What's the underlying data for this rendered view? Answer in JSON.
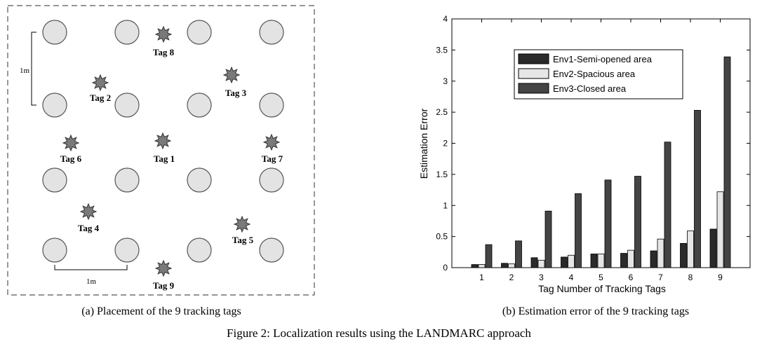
{
  "figure_caption": "Figure 2: Localization results using the LANDMARC approach",
  "left_panel": {
    "caption": "(a) Placement of the 9 tracking tags",
    "scale_label_vertical": "1m",
    "scale_label_horizontal": "1m",
    "tags": [
      {
        "label": "Tag 1"
      },
      {
        "label": "Tag 2"
      },
      {
        "label": "Tag 3"
      },
      {
        "label": "Tag 4"
      },
      {
        "label": "Tag 5"
      },
      {
        "label": "Tag 6"
      },
      {
        "label": "Tag 7"
      },
      {
        "label": "Tag 8"
      },
      {
        "label": "Tag 9"
      }
    ]
  },
  "right_panel": {
    "caption": "(b) Estimation error of the 9 tracking tags"
  },
  "colors": {
    "env1": "#2a2a2a",
    "env2": "#e6e6e6",
    "env3": "#444444",
    "reader": "#e3e3e3",
    "tag": "#7a7a7a"
  },
  "chart_data": {
    "type": "bar",
    "title": "",
    "xlabel": "Tag Number of Tracking Tags",
    "ylabel": "Estimation Error",
    "categories": [
      "1",
      "2",
      "3",
      "4",
      "5",
      "6",
      "7",
      "8",
      "9"
    ],
    "ylim": [
      0,
      4
    ],
    "yticks": [
      "0",
      "0.5",
      "1",
      "1.5",
      "2",
      "2.5",
      "3",
      "3.5",
      "4"
    ],
    "legend_position": "top-right",
    "series": [
      {
        "name": "Env1-Semi-opened area",
        "values": [
          0.05,
          0.07,
          0.16,
          0.17,
          0.22,
          0.23,
          0.27,
          0.39,
          0.62
        ]
      },
      {
        "name": "Env2-Spacious area",
        "values": [
          0.05,
          0.06,
          0.12,
          0.2,
          0.22,
          0.28,
          0.46,
          0.59,
          1.22
        ]
      },
      {
        "name": "Env3-Closed area",
        "values": [
          0.37,
          0.43,
          0.91,
          1.19,
          1.41,
          1.47,
          2.02,
          2.53,
          3.39
        ]
      }
    ]
  }
}
